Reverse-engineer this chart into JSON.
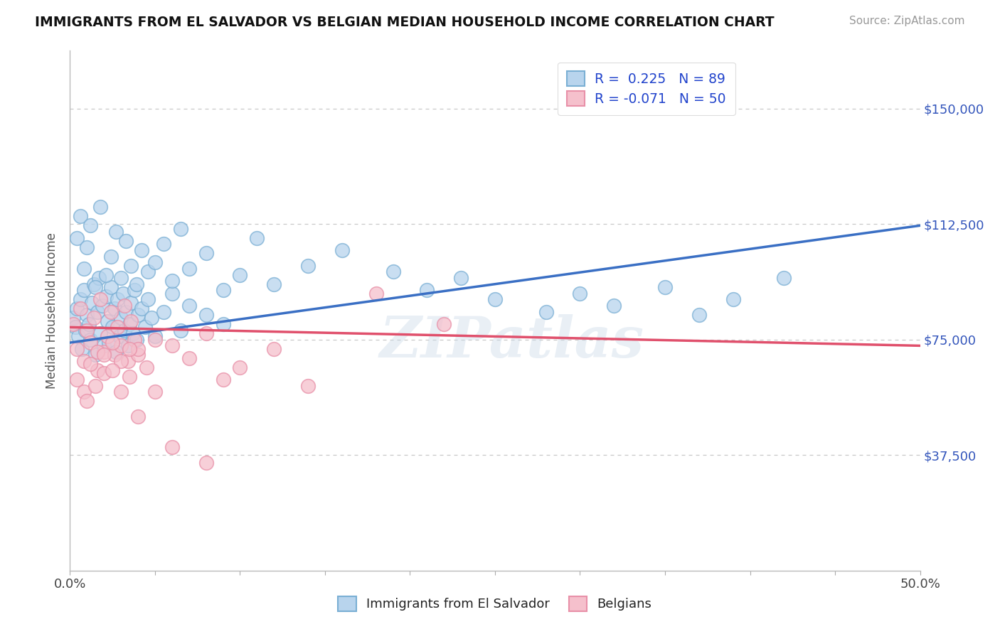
{
  "title": "IMMIGRANTS FROM EL SALVADOR VS BELGIAN MEDIAN HOUSEHOLD INCOME CORRELATION CHART",
  "source_text": "Source: ZipAtlas.com",
  "ylabel": "Median Household Income",
  "xmin": 0.0,
  "xmax": 0.5,
  "ymin": 0,
  "ymax": 168750,
  "yticks": [
    0,
    37500,
    75000,
    112500,
    150000
  ],
  "ytick_labels": [
    "",
    "$37,500",
    "$75,000",
    "$112,500",
    "$150,000"
  ],
  "grid_color": "#c8c8c8",
  "background_color": "#ffffff",
  "series1": {
    "name": "Immigrants from El Salvador",
    "R": 0.225,
    "N": 89,
    "dot_facecolor": "#b8d4ed",
    "dot_edgecolor": "#7aafd4",
    "trend_color": "#3a6fc4",
    "trend_y0": 74000,
    "trend_y1": 112000,
    "x": [
      0.002,
      0.003,
      0.004,
      0.005,
      0.006,
      0.007,
      0.008,
      0.009,
      0.01,
      0.011,
      0.012,
      0.013,
      0.014,
      0.015,
      0.016,
      0.017,
      0.018,
      0.019,
      0.02,
      0.021,
      0.022,
      0.023,
      0.024,
      0.025,
      0.026,
      0.027,
      0.028,
      0.029,
      0.03,
      0.031,
      0.032,
      0.033,
      0.034,
      0.035,
      0.036,
      0.037,
      0.038,
      0.039,
      0.04,
      0.042,
      0.044,
      0.046,
      0.048,
      0.05,
      0.055,
      0.06,
      0.065,
      0.07,
      0.08,
      0.09,
      0.004,
      0.006,
      0.008,
      0.01,
      0.012,
      0.015,
      0.018,
      0.021,
      0.024,
      0.027,
      0.03,
      0.033,
      0.036,
      0.039,
      0.042,
      0.046,
      0.05,
      0.055,
      0.06,
      0.065,
      0.07,
      0.08,
      0.09,
      0.1,
      0.11,
      0.12,
      0.14,
      0.16,
      0.19,
      0.21,
      0.23,
      0.25,
      0.28,
      0.3,
      0.32,
      0.35,
      0.37,
      0.39,
      0.42
    ],
    "y": [
      82000,
      79000,
      85000,
      76000,
      88000,
      72000,
      91000,
      78000,
      83000,
      80000,
      75000,
      87000,
      93000,
      70000,
      84000,
      95000,
      77000,
      86000,
      73000,
      89000,
      81000,
      74000,
      92000,
      79000,
      85000,
      71000,
      88000,
      76000,
      82000,
      90000,
      78000,
      84000,
      73000,
      80000,
      87000,
      77000,
      91000,
      75000,
      83000,
      85000,
      79000,
      88000,
      82000,
      76000,
      84000,
      90000,
      78000,
      86000,
      83000,
      80000,
      108000,
      115000,
      98000,
      105000,
      112000,
      92000,
      118000,
      96000,
      102000,
      110000,
      95000,
      107000,
      99000,
      93000,
      104000,
      97000,
      100000,
      106000,
      94000,
      111000,
      98000,
      103000,
      91000,
      96000,
      108000,
      93000,
      99000,
      104000,
      97000,
      91000,
      95000,
      88000,
      84000,
      90000,
      86000,
      92000,
      83000,
      88000,
      95000
    ]
  },
  "series2": {
    "name": "Belgians",
    "R": -0.071,
    "N": 50,
    "dot_facecolor": "#f5c0cc",
    "dot_edgecolor": "#e890a8",
    "trend_color": "#e0506c",
    "trend_y0": 79000,
    "trend_y1": 73000,
    "x": [
      0.002,
      0.004,
      0.006,
      0.008,
      0.01,
      0.012,
      0.014,
      0.016,
      0.018,
      0.02,
      0.022,
      0.024,
      0.026,
      0.028,
      0.03,
      0.032,
      0.034,
      0.036,
      0.038,
      0.04,
      0.004,
      0.008,
      0.012,
      0.016,
      0.02,
      0.025,
      0.03,
      0.035,
      0.04,
      0.045,
      0.05,
      0.06,
      0.07,
      0.08,
      0.09,
      0.1,
      0.12,
      0.14,
      0.18,
      0.22,
      0.01,
      0.015,
      0.02,
      0.025,
      0.03,
      0.035,
      0.04,
      0.05,
      0.06,
      0.08
    ],
    "y": [
      80000,
      72000,
      85000,
      68000,
      78000,
      74000,
      82000,
      65000,
      88000,
      71000,
      76000,
      84000,
      70000,
      79000,
      73000,
      86000,
      68000,
      81000,
      75000,
      70000,
      62000,
      58000,
      67000,
      71000,
      64000,
      74000,
      68000,
      63000,
      72000,
      66000,
      58000,
      73000,
      69000,
      77000,
      62000,
      66000,
      72000,
      60000,
      90000,
      80000,
      55000,
      60000,
      70000,
      65000,
      58000,
      72000,
      50000,
      75000,
      40000,
      35000
    ]
  },
  "watermark": "ZIPatlas",
  "legend1_label": "R =  0.225   N = 89",
  "legend2_label": "R = -0.071   N = 50"
}
